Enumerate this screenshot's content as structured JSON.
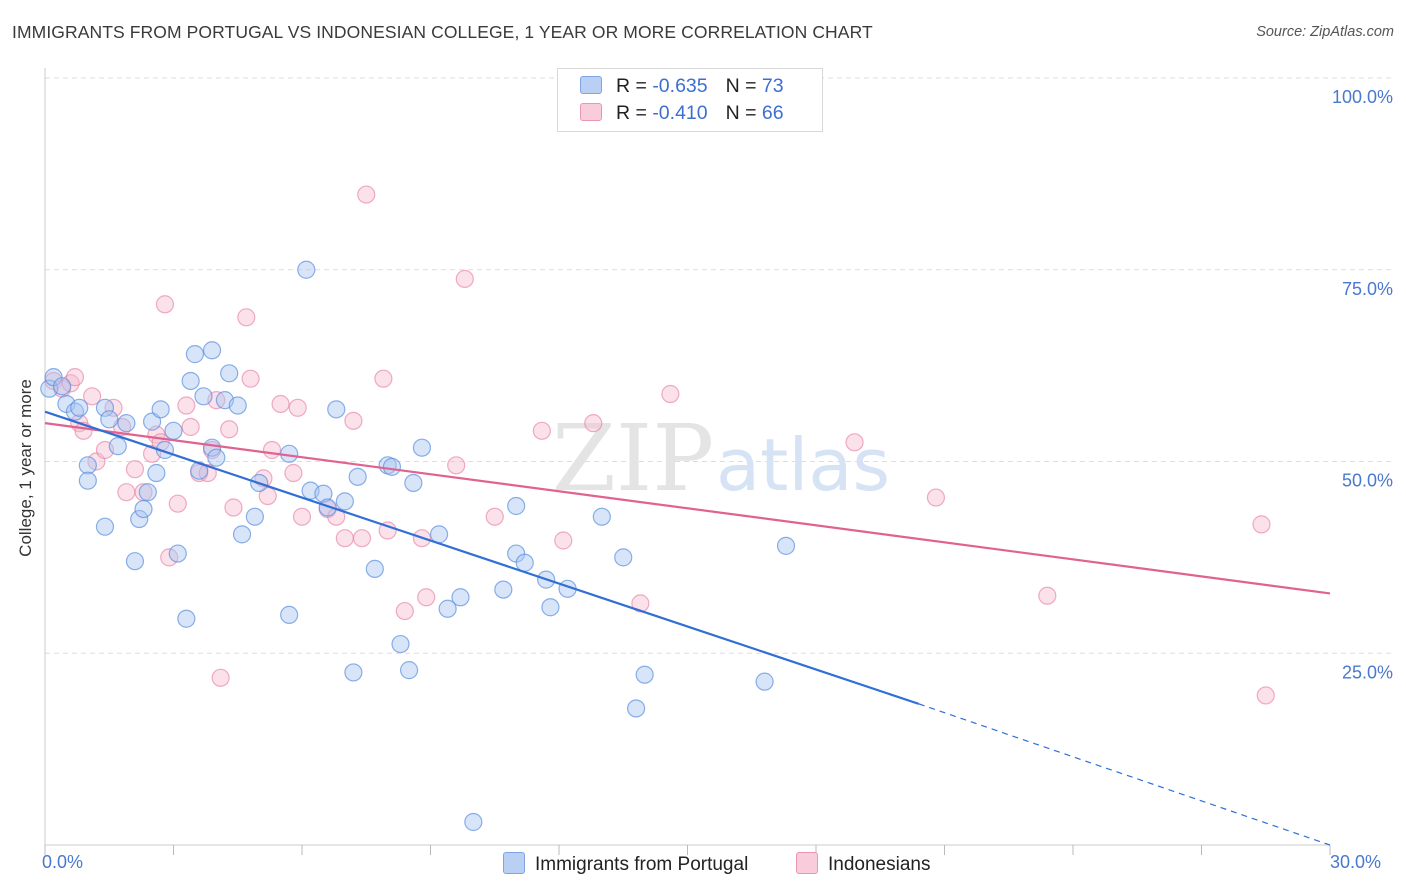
{
  "title": "IMMIGRANTS FROM PORTUGAL VS INDONESIAN COLLEGE, 1 YEAR OR MORE CORRELATION CHART",
  "source": "Source: ZipAtlas.com",
  "watermark": {
    "zip": "ZIP",
    "atlas": "atlas"
  },
  "colors": {
    "blue": "#5b8fe0",
    "blue_fill": "#a9c6f2",
    "blue_line": "#2f6fd6",
    "pink": "#e6789e",
    "pink_fill": "#f5bdd0",
    "pink_line": "#e0628f",
    "tick_label": "#4a78d0",
    "grid": "#dddddd"
  },
  "legend": {
    "rows": [
      {
        "r_label": "R = ",
        "r_value": "-0.635",
        "n_label": "N = ",
        "n_value": "73"
      },
      {
        "r_label": "R = ",
        "r_value": "-0.410",
        "n_label": "N = ",
        "n_value": "66"
      }
    ]
  },
  "bottom_legend": [
    "Immigrants from Portugal",
    "Indonesians"
  ],
  "chart_data": {
    "type": "scatter",
    "ylabel": "College, 1 year or more",
    "xlim": [
      0,
      30
    ],
    "ylim": [
      0,
      100
    ],
    "x_tick_labels": [
      "0.0%",
      "30.0%"
    ],
    "y_ticks": [
      25,
      50,
      75,
      100
    ],
    "y_tick_labels": [
      "25.0%",
      "50.0%",
      "75.0%",
      "100.0%"
    ],
    "grid": true,
    "legend_position": "top-center",
    "series": [
      {
        "name": "Immigrants from Portugal",
        "r": -0.635,
        "n": 73,
        "trend": {
          "x0": 0,
          "y0": 56.5,
          "x1": 20.4,
          "y1": 18.4,
          "dashed_to_x": 30,
          "dashed_to_y": 0.0
        },
        "points": [
          [
            0.1,
            59.5
          ],
          [
            0.2,
            61.0
          ],
          [
            0.4,
            59.8
          ],
          [
            0.5,
            57.5
          ],
          [
            0.7,
            56.5
          ],
          [
            0.8,
            57.0
          ],
          [
            1.0,
            49.5
          ],
          [
            1.0,
            47.5
          ],
          [
            1.4,
            57.0
          ],
          [
            1.5,
            55.5
          ],
          [
            1.7,
            52.0
          ],
          [
            1.9,
            55.0
          ],
          [
            1.4,
            41.5
          ],
          [
            2.1,
            37.0
          ],
          [
            2.2,
            42.5
          ],
          [
            2.3,
            43.8
          ],
          [
            2.4,
            46.0
          ],
          [
            2.5,
            55.2
          ],
          [
            2.6,
            48.5
          ],
          [
            2.7,
            56.8
          ],
          [
            2.8,
            51.5
          ],
          [
            3.0,
            54.0
          ],
          [
            3.1,
            38.0
          ],
          [
            3.3,
            29.5
          ],
          [
            3.4,
            60.5
          ],
          [
            3.5,
            64.0
          ],
          [
            3.6,
            48.8
          ],
          [
            3.7,
            58.5
          ],
          [
            3.9,
            51.8
          ],
          [
            3.9,
            64.5
          ],
          [
            4.0,
            50.5
          ],
          [
            4.2,
            58.0
          ],
          [
            4.3,
            61.5
          ],
          [
            4.5,
            57.3
          ],
          [
            4.6,
            40.5
          ],
          [
            4.9,
            42.8
          ],
          [
            5.0,
            47.2
          ],
          [
            5.7,
            30.0
          ],
          [
            5.7,
            51.0
          ],
          [
            6.1,
            75.0
          ],
          [
            6.2,
            46.2
          ],
          [
            6.5,
            45.8
          ],
          [
            6.6,
            44.0
          ],
          [
            6.8,
            56.8
          ],
          [
            7.0,
            44.8
          ],
          [
            7.2,
            22.5
          ],
          [
            7.3,
            48.0
          ],
          [
            7.7,
            36.0
          ],
          [
            8.0,
            49.5
          ],
          [
            8.1,
            49.3
          ],
          [
            8.3,
            26.2
          ],
          [
            8.5,
            22.8
          ],
          [
            8.6,
            47.2
          ],
          [
            8.8,
            51.8
          ],
          [
            9.2,
            40.5
          ],
          [
            9.4,
            30.8
          ],
          [
            9.7,
            32.3
          ],
          [
            10.0,
            3.0
          ],
          [
            10.7,
            33.3
          ],
          [
            11.0,
            44.2
          ],
          [
            11.0,
            38.0
          ],
          [
            11.2,
            36.8
          ],
          [
            11.7,
            34.6
          ],
          [
            11.8,
            31.0
          ],
          [
            12.2,
            33.4
          ],
          [
            13.0,
            42.8
          ],
          [
            13.5,
            37.5
          ],
          [
            13.8,
            17.8
          ],
          [
            14.0,
            22.2
          ],
          [
            16.8,
            21.3
          ],
          [
            17.3,
            39.0
          ]
        ]
      },
      {
        "name": "Indonesians",
        "r": -0.41,
        "n": 66,
        "trend": {
          "x0": 0,
          "y0": 55.0,
          "x1": 30,
          "y1": 32.8
        },
        "points": [
          [
            0.2,
            60.5
          ],
          [
            0.4,
            59.5
          ],
          [
            0.6,
            60.2
          ],
          [
            0.7,
            61.0
          ],
          [
            0.8,
            55.0
          ],
          [
            0.9,
            54.0
          ],
          [
            1.1,
            58.5
          ],
          [
            1.2,
            50.0
          ],
          [
            1.4,
            51.5
          ],
          [
            1.6,
            57.0
          ],
          [
            1.8,
            54.5
          ],
          [
            1.9,
            46.0
          ],
          [
            2.1,
            49.0
          ],
          [
            2.3,
            46.0
          ],
          [
            2.5,
            51.0
          ],
          [
            2.6,
            53.5
          ],
          [
            2.7,
            52.5
          ],
          [
            2.8,
            70.5
          ],
          [
            2.9,
            37.5
          ],
          [
            3.1,
            44.5
          ],
          [
            3.3,
            57.3
          ],
          [
            3.4,
            54.5
          ],
          [
            3.6,
            48.5
          ],
          [
            3.8,
            48.5
          ],
          [
            3.9,
            51.5
          ],
          [
            4.0,
            58.0
          ],
          [
            4.1,
            21.8
          ],
          [
            4.3,
            54.2
          ],
          [
            4.4,
            44.0
          ],
          [
            4.7,
            68.8
          ],
          [
            4.8,
            60.8
          ],
          [
            5.1,
            47.8
          ],
          [
            5.2,
            45.5
          ],
          [
            5.3,
            51.5
          ],
          [
            5.5,
            57.5
          ],
          [
            5.8,
            48.5
          ],
          [
            5.9,
            57.0
          ],
          [
            6.0,
            42.8
          ],
          [
            6.6,
            43.8
          ],
          [
            6.8,
            42.8
          ],
          [
            7.0,
            40.0
          ],
          [
            7.2,
            55.3
          ],
          [
            7.4,
            40.0
          ],
          [
            7.5,
            84.8
          ],
          [
            7.9,
            60.8
          ],
          [
            8.0,
            41.0
          ],
          [
            8.4,
            30.5
          ],
          [
            8.8,
            40.0
          ],
          [
            8.9,
            32.3
          ],
          [
            9.6,
            49.5
          ],
          [
            9.8,
            73.8
          ],
          [
            10.5,
            42.8
          ],
          [
            11.6,
            54.0
          ],
          [
            12.1,
            39.7
          ],
          [
            12.8,
            55.0
          ],
          [
            13.9,
            31.5
          ],
          [
            14.6,
            58.8
          ],
          [
            18.9,
            52.5
          ],
          [
            20.8,
            45.3
          ],
          [
            23.4,
            32.5
          ],
          [
            28.4,
            41.8
          ],
          [
            28.5,
            19.5
          ]
        ]
      }
    ]
  }
}
